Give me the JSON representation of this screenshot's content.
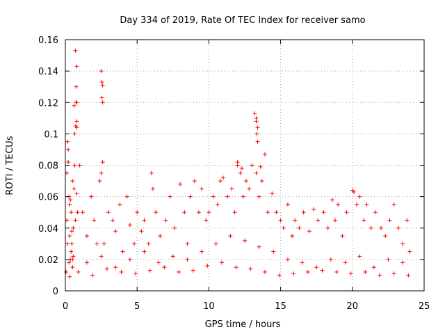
{
  "chart_data": {
    "type": "scatter",
    "title": "Day 334 of 2019, Rate Of TEC Index for receiver samo",
    "xlabel": "GPS time / hours",
    "ylabel": "ROTI / TECUs",
    "xlim": [
      0,
      25
    ],
    "ylim": [
      0,
      0.16
    ],
    "x_ticks": [
      0,
      5,
      10,
      15,
      20,
      25
    ],
    "y_ticks": [
      0,
      0.02,
      0.04,
      0.06,
      0.08,
      0.1,
      0.12,
      0.14,
      0.16
    ],
    "x_tick_labels": [
      "0",
      "5",
      "10",
      "15",
      "20",
      "25"
    ],
    "y_tick_labels": [
      "0",
      "0.02",
      "0.04",
      "0.06",
      "0.08",
      "0.1",
      "0.12",
      "0.14",
      "0.16"
    ],
    "grid": true,
    "marker": "plus",
    "color": "#ff0000",
    "series": [
      {
        "x": [
          0.05,
          0.1,
          0.15,
          0.2,
          0.25,
          0.3,
          0.35,
          0.4,
          0.45,
          0.5,
          0.55,
          0.6,
          0.65,
          0.7,
          0.75,
          0.8,
          0.1,
          0.2,
          0.3,
          0.4,
          0.5,
          0.6,
          0.7,
          0.15,
          0.25,
          0.35,
          0.45,
          0.55,
          0.65,
          0.72,
          0.78,
          0.3,
          0.8,
          0.85,
          1.0,
          1.2,
          1.5,
          1.8,
          2.0,
          2.2,
          2.4,
          2.5,
          2.55,
          2.6,
          2.5,
          2.6,
          2.7,
          3.0,
          3.3,
          3.5,
          3.8,
          4.0,
          4.3,
          4.5,
          4.8,
          5.0,
          5.3,
          5.5,
          5.8,
          6.0,
          6.1,
          6.3,
          6.6,
          7.0,
          7.3,
          7.6,
          8.0,
          8.3,
          8.5,
          8.7,
          9.0,
          9.3,
          9.5,
          9.8,
          10.0,
          10.3,
          10.6,
          10.8,
          11.0,
          11.3,
          11.6,
          11.8,
          12.0,
          12.2,
          12.4,
          12.6,
          12.8,
          13.0,
          13.2,
          13.3,
          13.35,
          13.4,
          13.3,
          13.5,
          13.7,
          13.9,
          14.1,
          14.4,
          14.7,
          15.0,
          15.2,
          15.5,
          15.8,
          16.0,
          16.3,
          16.6,
          17.0,
          17.3,
          17.6,
          18.0,
          18.3,
          18.6,
          18.8,
          19.0,
          19.3,
          19.6,
          20.0,
          20.1,
          20.3,
          20.5,
          20.8,
          21.0,
          21.3,
          21.6,
          22.0,
          22.3,
          22.6,
          22.9,
          23.2,
          23.5,
          23.8,
          24.0,
          0.5,
          1.5,
          2.5,
          3.5,
          4.5,
          5.5,
          6.5,
          7.5,
          8.5,
          9.5,
          10.5,
          11.5,
          12.5,
          13.5,
          14.5,
          15.5,
          16.5,
          17.5,
          18.5,
          19.5,
          20.5,
          21.5,
          22.5,
          23.5,
          0.9,
          1.9,
          2.9,
          3.9,
          4.9,
          5.9,
          6.9,
          7.9,
          8.9,
          9.9,
          10.9,
          11.9,
          12.9,
          13.9,
          14.9,
          15.9,
          16.9,
          17.9,
          18.9,
          19.9,
          20.9,
          21.9,
          22.9,
          23.9,
          2.55,
          2.6,
          0.75,
          0.8,
          0.8,
          12.0,
          12.3,
          13.3,
          13.4,
          13.6
        ],
        "y": [
          0.012,
          0.045,
          0.095,
          0.09,
          0.06,
          0.035,
          0.02,
          0.05,
          0.03,
          0.07,
          0.04,
          0.118,
          0.1,
          0.153,
          0.13,
          0.143,
          0.075,
          0.082,
          0.055,
          0.025,
          0.015,
          0.065,
          0.045,
          0.03,
          0.018,
          0.058,
          0.038,
          0.022,
          0.08,
          0.105,
          0.12,
          0.009,
          0.062,
          0.05,
          0.08,
          0.05,
          0.035,
          0.06,
          0.045,
          0.03,
          0.07,
          0.14,
          0.133,
          0.12,
          0.075,
          0.082,
          0.03,
          0.05,
          0.045,
          0.038,
          0.055,
          0.025,
          0.06,
          0.042,
          0.03,
          0.05,
          0.038,
          0.045,
          0.03,
          0.075,
          0.065,
          0.05,
          0.035,
          0.045,
          0.06,
          0.04,
          0.068,
          0.05,
          0.03,
          0.06,
          0.07,
          0.05,
          0.065,
          0.045,
          0.05,
          0.06,
          0.055,
          0.07,
          0.072,
          0.06,
          0.065,
          0.05,
          0.082,
          0.075,
          0.06,
          0.07,
          0.065,
          0.08,
          0.113,
          0.11,
          0.1,
          0.095,
          0.075,
          0.06,
          0.07,
          0.087,
          0.05,
          0.062,
          0.05,
          0.045,
          0.04,
          0.055,
          0.035,
          0.045,
          0.04,
          0.05,
          0.038,
          0.052,
          0.045,
          0.05,
          0.04,
          0.058,
          0.045,
          0.055,
          0.035,
          0.05,
          0.064,
          0.063,
          0.055,
          0.06,
          0.045,
          0.055,
          0.04,
          0.05,
          0.04,
          0.035,
          0.045,
          0.055,
          0.04,
          0.03,
          0.045,
          0.025,
          0.02,
          0.018,
          0.022,
          0.015,
          0.02,
          0.025,
          0.018,
          0.022,
          0.02,
          0.025,
          0.03,
          0.035,
          0.032,
          0.028,
          0.025,
          0.02,
          0.018,
          0.015,
          0.02,
          0.018,
          0.022,
          0.015,
          0.02,
          0.018,
          0.012,
          0.01,
          0.014,
          0.012,
          0.011,
          0.013,
          0.015,
          0.012,
          0.013,
          0.016,
          0.018,
          0.015,
          0.014,
          0.012,
          0.01,
          0.011,
          0.012,
          0.013,
          0.012,
          0.011,
          0.012,
          0.01,
          0.011,
          0.01,
          0.123,
          0.131,
          0.12,
          0.108,
          0.104,
          0.08,
          0.078,
          0.108,
          0.104,
          0.079
        ]
      }
    ]
  }
}
